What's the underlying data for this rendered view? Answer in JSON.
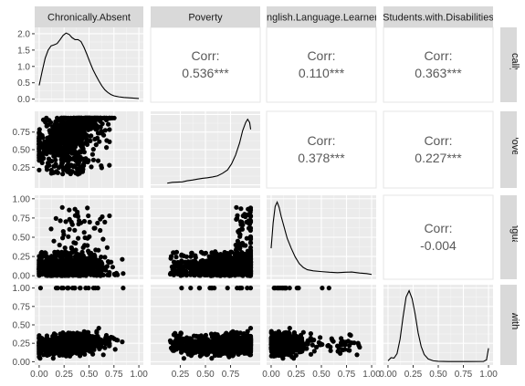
{
  "chart_data": {
    "type": "pairs",
    "variables": [
      "Chronically.Absent",
      "Poverty",
      "English.Language.Learners",
      "Students.with.Disabilities"
    ],
    "correlations": [
      {
        "row": 0,
        "col": 1,
        "label": "Corr:",
        "value": "0.536***"
      },
      {
        "row": 0,
        "col": 2,
        "label": "Corr:",
        "value": "0.110***"
      },
      {
        "row": 0,
        "col": 3,
        "label": "Corr:",
        "value": "0.363***"
      },
      {
        "row": 1,
        "col": 2,
        "label": "Corr:",
        "value": "0.378***"
      },
      {
        "row": 1,
        "col": 3,
        "label": "Corr:",
        "value": "0.227***"
      },
      {
        "row": 2,
        "col": 3,
        "label": "Corr:",
        "value": "-0.004"
      }
    ],
    "densities": [
      {
        "var": "Chronically.Absent",
        "ylim": [
          0,
          2.1
        ],
        "yticks": [
          0.0,
          0.5,
          1.0,
          1.5,
          2.0
        ],
        "points": [
          [
            0.0,
            0.42
          ],
          [
            0.03,
            0.85
          ],
          [
            0.06,
            1.25
          ],
          [
            0.09,
            1.5
          ],
          [
            0.12,
            1.63
          ],
          [
            0.15,
            1.66
          ],
          [
            0.18,
            1.7
          ],
          [
            0.21,
            1.82
          ],
          [
            0.24,
            1.95
          ],
          [
            0.27,
            2.02
          ],
          [
            0.3,
            1.98
          ],
          [
            0.33,
            1.88
          ],
          [
            0.36,
            1.82
          ],
          [
            0.39,
            1.82
          ],
          [
            0.42,
            1.76
          ],
          [
            0.45,
            1.58
          ],
          [
            0.48,
            1.36
          ],
          [
            0.51,
            1.12
          ],
          [
            0.54,
            0.9
          ],
          [
            0.57,
            0.72
          ],
          [
            0.6,
            0.55
          ],
          [
            0.63,
            0.4
          ],
          [
            0.66,
            0.28
          ],
          [
            0.69,
            0.2
          ],
          [
            0.72,
            0.14
          ],
          [
            0.75,
            0.1
          ],
          [
            0.8,
            0.07
          ],
          [
            0.85,
            0.05
          ],
          [
            0.9,
            0.04
          ],
          [
            0.95,
            0.03
          ],
          [
            1.0,
            0.02
          ]
        ]
      },
      {
        "var": "Poverty",
        "ylim": [
          0,
          5.2
        ],
        "points": [
          [
            0.12,
            0.12
          ],
          [
            0.17,
            0.18
          ],
          [
            0.22,
            0.2
          ],
          [
            0.27,
            0.22
          ],
          [
            0.32,
            0.3
          ],
          [
            0.37,
            0.35
          ],
          [
            0.42,
            0.42
          ],
          [
            0.47,
            0.48
          ],
          [
            0.52,
            0.52
          ],
          [
            0.57,
            0.58
          ],
          [
            0.62,
            0.66
          ],
          [
            0.67,
            0.85
          ],
          [
            0.72,
            1.1
          ],
          [
            0.76,
            1.55
          ],
          [
            0.8,
            2.2
          ],
          [
            0.84,
            3.1
          ],
          [
            0.87,
            4.0
          ],
          [
            0.9,
            4.6
          ],
          [
            0.92,
            4.85
          ],
          [
            0.94,
            4.6
          ],
          [
            0.95,
            4.1
          ]
        ]
      },
      {
        "var": "English.Language.Learners",
        "ylim": [
          0,
          7.0
        ],
        "points": [
          [
            0.0,
            2.5
          ],
          [
            0.02,
            4.8
          ],
          [
            0.04,
            6.3
          ],
          [
            0.06,
            6.7
          ],
          [
            0.08,
            6.2
          ],
          [
            0.1,
            5.4
          ],
          [
            0.13,
            4.4
          ],
          [
            0.16,
            3.4
          ],
          [
            0.2,
            2.5
          ],
          [
            0.24,
            1.7
          ],
          [
            0.28,
            1.1
          ],
          [
            0.32,
            0.75
          ],
          [
            0.36,
            0.55
          ],
          [
            0.42,
            0.45
          ],
          [
            0.5,
            0.38
          ],
          [
            0.58,
            0.32
          ],
          [
            0.66,
            0.28
          ],
          [
            0.74,
            0.32
          ],
          [
            0.8,
            0.34
          ],
          [
            0.88,
            0.25
          ],
          [
            0.95,
            0.2
          ],
          [
            1.0,
            0.12
          ]
        ]
      },
      {
        "var": "Students.with.Disabilities",
        "ylim": [
          0,
          8.2
        ],
        "points": [
          [
            0.0,
            0.1
          ],
          [
            0.03,
            0.45
          ],
          [
            0.06,
            0.4
          ],
          [
            0.09,
            0.9
          ],
          [
            0.12,
            2.5
          ],
          [
            0.15,
            5.0
          ],
          [
            0.18,
            7.2
          ],
          [
            0.21,
            7.9
          ],
          [
            0.24,
            7.0
          ],
          [
            0.27,
            5.3
          ],
          [
            0.3,
            3.2
          ],
          [
            0.33,
            1.7
          ],
          [
            0.36,
            0.8
          ],
          [
            0.4,
            0.3
          ],
          [
            0.45,
            0.1
          ],
          [
            0.5,
            0.04
          ],
          [
            0.6,
            0.02
          ],
          [
            0.8,
            0.02
          ],
          [
            0.95,
            0.03
          ],
          [
            0.98,
            0.2
          ],
          [
            1.0,
            1.5
          ]
        ]
      }
    ],
    "scatter_ranges": {
      "Chronically.Absent": [
        0.0,
        0.95
      ],
      "Poverty": [
        0.08,
        0.96
      ],
      "English.Language.Learners": [
        0.0,
        0.97
      ],
      "Students.with.Disabilities": [
        0.0,
        1.0
      ]
    },
    "xaxis_ticks": {
      "Chronically.Absent": [
        0.0,
        0.25,
        0.5,
        0.75,
        1.0
      ],
      "Poverty": [
        0.25,
        0.5,
        0.75
      ],
      "English.Language.Learners": [
        0.0,
        0.25,
        0.5,
        0.75,
        1.0
      ],
      "Students.with.Disabilities": [
        0.0,
        0.25,
        0.5,
        0.75,
        1.0
      ]
    },
    "yaxis_ticks": {
      "Poverty": [
        0.25,
        0.5,
        0.75
      ],
      "English.Language.Learners": [
        0.0,
        0.25,
        0.5,
        0.75,
        1.0
      ],
      "Students.with.Disabilities": [
        0.0,
        0.25,
        0.5,
        0.75,
        1.0
      ]
    },
    "grid": true,
    "colors": {
      "panel": "#ebebeb",
      "strip": "#d9d9d9",
      "grid_major": "#ffffff",
      "ink": "#000000",
      "corr_text": "#595959"
    }
  }
}
